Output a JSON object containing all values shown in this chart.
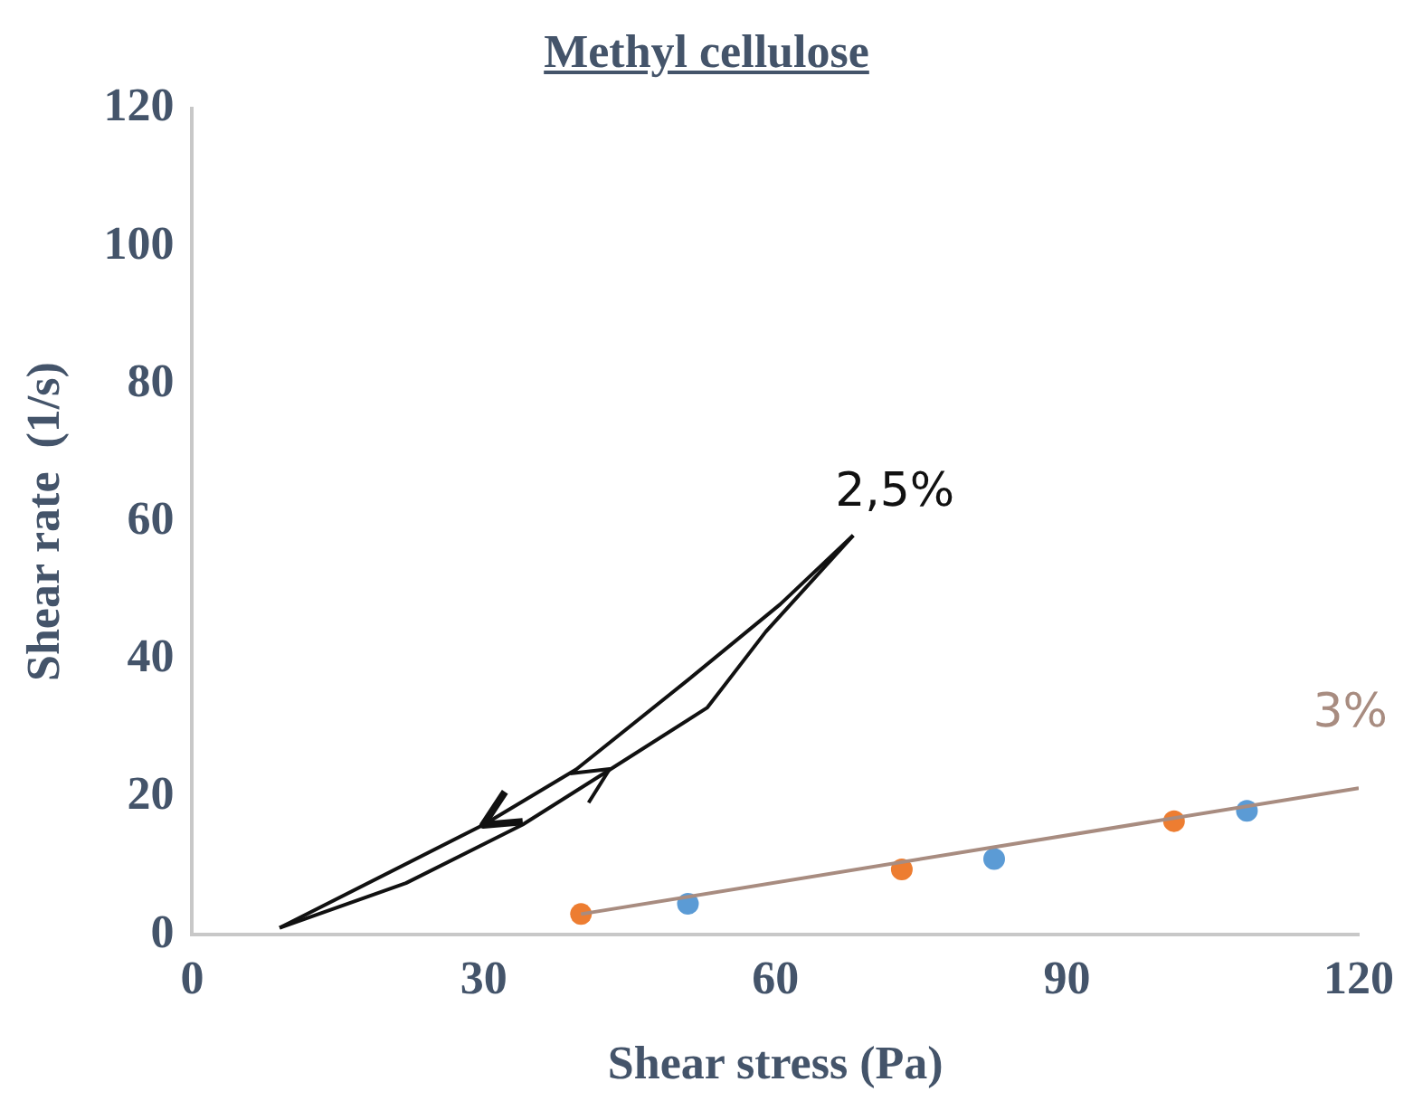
{
  "chart_data": {
    "type": "scatter",
    "title": "Methyl cellulose",
    "xlabel": "Shear stress (Pa)",
    "ylabel": "Shear rate  (1/s)",
    "xlim": [
      0,
      120
    ],
    "xticks": [
      0,
      30,
      60,
      90,
      120
    ],
    "ylim": [
      0,
      120
    ],
    "yticks": [
      0,
      20,
      40,
      60,
      80,
      100,
      120
    ],
    "grid": false,
    "legend": false,
    "series": [
      {
        "name": "2,5%",
        "type": "line",
        "marker": "none",
        "color": "#111111",
        "x": [
          9,
          30,
          39.5,
          51,
          60.5,
          68
        ],
        "values": [
          1,
          16,
          24,
          37,
          48,
          58
        ]
      },
      {
        "type": "line",
        "marker": "none",
        "color": "#111111",
        "x": [
          9,
          22,
          34,
          43,
          53,
          59,
          68
        ],
        "values": [
          1,
          7.5,
          16,
          24,
          33,
          44,
          58
        ]
      },
      {
        "name": "3%",
        "type": "line",
        "marker": "none",
        "color": "#a88c80",
        "x": [
          40,
          120
        ],
        "values": [
          3,
          21.3
        ]
      },
      {
        "marker": "circle",
        "color": "#ed7d31",
        "x": [
          40,
          73,
          101
        ],
        "values": [
          3,
          9.5,
          16.5
        ]
      },
      {
        "marker": "circle",
        "color": "#5b9bd5",
        "x": [
          51,
          82.5,
          108.5
        ],
        "values": [
          4.5,
          11,
          18
        ]
      }
    ]
  }
}
